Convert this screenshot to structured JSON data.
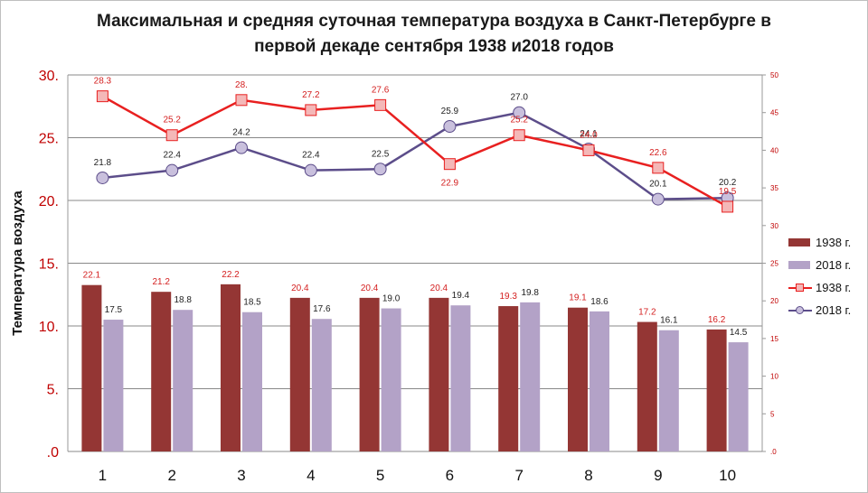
{
  "title_lines": [
    "Максимальная и средняя суточная температура воздуха в Санкт-Петербурге в",
    "первой декаде сентября 1938 и2018 годов"
  ],
  "chart_data": {
    "type": "bar+line",
    "title": "Максимальная и средняя суточная температура воздуха в Санкт-Петербурге в первой декаде сентября 1938 и2018 годов",
    "ylabel": "Температура воздуха",
    "categories": [
      "1",
      "2",
      "3",
      "4",
      "5",
      "6",
      "7",
      "8",
      "9",
      "10"
    ],
    "left_axis": {
      "ylim": [
        0,
        30
      ],
      "tick_labels": [
        ".0",
        "5.",
        "10.",
        "15.",
        "20.",
        "25.",
        "30."
      ]
    },
    "right_axis": {
      "ylim": [
        0,
        50
      ],
      "tick_labels": [
        ".0",
        "5",
        "10",
        "15",
        "20",
        "25",
        "30",
        "35",
        "40",
        "45",
        "50"
      ]
    },
    "series": [
      {
        "name": "1938 г.",
        "kind": "bar",
        "color": "#943634",
        "values": [
          22.1,
          21.2,
          22.2,
          20.4,
          20.4,
          20.4,
          19.3,
          19.1,
          17.2,
          16.2
        ],
        "labels": [
          "22.1",
          "21.2",
          "22.2",
          "20.4",
          "20.4",
          "20.4",
          "19.3",
          "19.1",
          "17.2",
          "16.2"
        ]
      },
      {
        "name": "2018 г.",
        "kind": "bar",
        "color": "#b3a2c7",
        "values": [
          17.5,
          18.8,
          18.5,
          17.6,
          19.0,
          19.4,
          19.8,
          18.6,
          16.1,
          14.5
        ],
        "labels": [
          "17.5",
          "18.8",
          "18.5",
          "17.6",
          "19.0",
          "19.4",
          "19.8",
          "18.6",
          "16.1",
          "14.5"
        ]
      },
      {
        "name": "1938 г.",
        "kind": "line",
        "color": "#e82020",
        "marker": "square",
        "values": [
          28.3,
          25.2,
          28.0,
          27.2,
          27.6,
          22.9,
          25.2,
          24.0,
          22.6,
          19.5
        ],
        "labels": [
          "28.3",
          "25.2",
          "28.",
          "27.2",
          "27.6",
          "22.9",
          "25.2",
          "24.0",
          "22.6",
          "19.5"
        ]
      },
      {
        "name": "2018 г.",
        "kind": "line",
        "color": "#5c4d8a",
        "marker": "circle",
        "values": [
          21.8,
          22.4,
          24.2,
          22.4,
          22.5,
          25.9,
          27.0,
          24.1,
          20.1,
          20.2
        ],
        "labels": [
          "21.8",
          "22.4",
          "24.2",
          "22.4",
          "22.5",
          "25.9",
          "27.0",
          "24.1",
          "20.1",
          "20.2"
        ]
      }
    ],
    "colors": {
      "left_axis_text": "#c00000",
      "right_axis_text": "#c00000",
      "grid": "#888888"
    },
    "legend_placement": "right"
  },
  "legend": [
    {
      "label": "1938 г.",
      "kind": "bar",
      "color": "#943634"
    },
    {
      "label": "2018 г.",
      "kind": "bar",
      "color": "#b3a2c7"
    },
    {
      "label": "1938 г.",
      "kind": "line",
      "color": "#e82020",
      "marker_fill": "#f4b8b8"
    },
    {
      "label": "2018 г.",
      "kind": "line",
      "color": "#5c4d8a",
      "marker_fill": "#c9c0dd"
    }
  ]
}
